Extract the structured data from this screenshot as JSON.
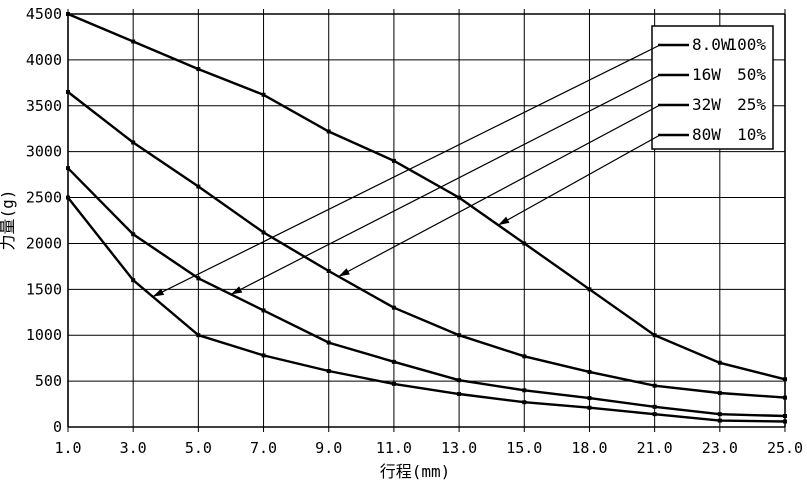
{
  "chart_data": {
    "type": "line",
    "title": "",
    "xlabel": "行程(mm)",
    "ylabel": "力量(g)",
    "x_ticks_mm": [
      1,
      3,
      5,
      7,
      9,
      11,
      13,
      15,
      18,
      21,
      23,
      25
    ],
    "x_tick_labels": [
      "1.0",
      "3.0",
      "5.0",
      "7.0",
      "9.0",
      "11.0",
      "13.0",
      "15.0",
      "18.0",
      "21.0",
      "23.0",
      "25.0"
    ],
    "y_tick_labels": [
      "0",
      "500",
      "1000",
      "1500",
      "2000",
      "2500",
      "3000",
      "3500",
      "4000",
      "4500"
    ],
    "ylim": [
      0,
      4500
    ],
    "y_tick_interval": 500,
    "grid": "on",
    "legend_position": "top-right",
    "line_color": "#000000",
    "background_color": "#ffffff",
    "series": [
      {
        "label": "8.0W",
        "duty": "100%",
        "values": [
          2500,
          1600,
          1000,
          780,
          610,
          470,
          360,
          270,
          210,
          140,
          70,
          60
        ]
      },
      {
        "label": "16W",
        "duty": "50%",
        "values": [
          2820,
          2100,
          1620,
          1270,
          920,
          710,
          510,
          400,
          315,
          220,
          140,
          120
        ]
      },
      {
        "label": "32W",
        "duty": "25%",
        "values": [
          3650,
          3100,
          2620,
          2120,
          1700,
          1300,
          1000,
          770,
          600,
          450,
          370,
          320
        ]
      },
      {
        "label": "80W",
        "duty": "10%",
        "values": [
          4500,
          4200,
          3900,
          3620,
          3220,
          2900,
          2500,
          2000,
          1500,
          1000,
          700,
          520
        ]
      }
    ],
    "callouts": [
      {
        "series_index": 0,
        "target_mm": 3.6,
        "target_g": 1420
      },
      {
        "series_index": 1,
        "target_mm": 6.0,
        "target_g": 1445
      },
      {
        "series_index": 2,
        "target_mm": 9.3,
        "target_g": 1640
      },
      {
        "series_index": 3,
        "target_mm": 14.2,
        "target_g": 2200
      }
    ]
  }
}
